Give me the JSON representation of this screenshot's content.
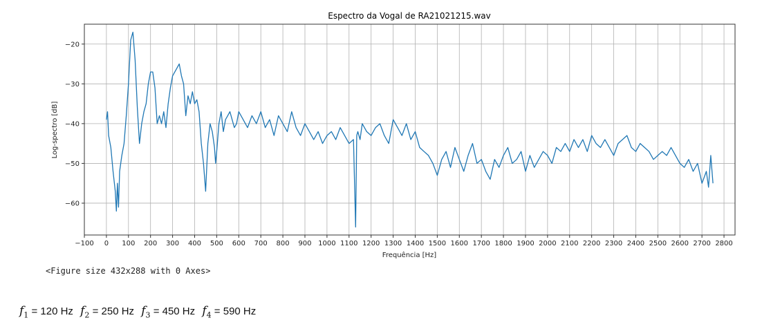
{
  "chart_data": {
    "type": "line",
    "title": "Espectro da Vogal de RA21021215.wav",
    "xlabel": "Frequência [Hz]",
    "ylabel": "Log-spectro [dB]",
    "xlim": [
      -100,
      2850
    ],
    "ylim": [
      -68,
      -15
    ],
    "xticks": [
      -100,
      0,
      100,
      200,
      300,
      400,
      500,
      600,
      700,
      800,
      900,
      1000,
      1100,
      1200,
      1300,
      1400,
      1500,
      1600,
      1700,
      1800,
      1900,
      2000,
      2100,
      2200,
      2300,
      2400,
      2500,
      2600,
      2700,
      2800
    ],
    "xtick_labels": [
      "−100",
      "0",
      "100",
      "200",
      "300",
      "400",
      "500",
      "600",
      "700",
      "800",
      "900",
      "1000",
      "1100",
      "1200",
      "1300",
      "1400",
      "1500",
      "1600",
      "1700",
      "1800",
      "1900",
      "2000",
      "2100",
      "2200",
      "2300",
      "2400",
      "2500",
      "2600",
      "2700",
      "2800"
    ],
    "yticks": [
      -60,
      -50,
      -40,
      -30,
      -20
    ],
    "ytick_labels": [
      "−60",
      "−50",
      "−40",
      "−30",
      "−20"
    ],
    "grid": true,
    "line_color": "#1f77b4",
    "series": [
      {
        "x": [
          0,
          5,
          10,
          20,
          30,
          40,
          45,
          50,
          55,
          60,
          70,
          80,
          90,
          100,
          110,
          120,
          130,
          140,
          150,
          160,
          170,
          180,
          190,
          200,
          210,
          220,
          230,
          240,
          250,
          260,
          270,
          280,
          290,
          300,
          310,
          320,
          330,
          340,
          350,
          360,
          370,
          380,
          390,
          400,
          410,
          420,
          430,
          440,
          450,
          460,
          470,
          480,
          490,
          495,
          500,
          510,
          520,
          530,
          540,
          550,
          560,
          570,
          580,
          590,
          600,
          620,
          640,
          660,
          680,
          700,
          720,
          740,
          760,
          780,
          800,
          820,
          840,
          860,
          880,
          900,
          920,
          940,
          960,
          980,
          1000,
          1020,
          1040,
          1060,
          1080,
          1100,
          1120,
          1130,
          1135,
          1140,
          1150,
          1160,
          1180,
          1200,
          1220,
          1240,
          1260,
          1280,
          1300,
          1320,
          1340,
          1360,
          1380,
          1400,
          1420,
          1440,
          1460,
          1480,
          1500,
          1520,
          1540,
          1560,
          1580,
          1600,
          1620,
          1640,
          1660,
          1680,
          1700,
          1720,
          1740,
          1760,
          1780,
          1800,
          1820,
          1840,
          1860,
          1880,
          1900,
          1920,
          1940,
          1960,
          1980,
          2000,
          2020,
          2040,
          2060,
          2080,
          2100,
          2120,
          2140,
          2160,
          2180,
          2200,
          2220,
          2240,
          2260,
          2280,
          2300,
          2320,
          2340,
          2360,
          2380,
          2400,
          2420,
          2440,
          2460,
          2480,
          2500,
          2520,
          2540,
          2560,
          2580,
          2600,
          2620,
          2640,
          2660,
          2680,
          2700,
          2720,
          2730,
          2740,
          2750
        ],
        "y": [
          -39,
          -37,
          -43,
          -46,
          -52,
          -57,
          -62,
          -55,
          -61,
          -52,
          -48,
          -45,
          -38,
          -30,
          -19,
          -17,
          -24,
          -36,
          -45,
          -40,
          -37,
          -35,
          -30,
          -27,
          -27,
          -31,
          -40,
          -38,
          -40,
          -37,
          -41,
          -35,
          -31,
          -28,
          -27,
          -26,
          -25,
          -28,
          -30,
          -38,
          -33,
          -35,
          -32,
          -35,
          -34,
          -37,
          -45,
          -50,
          -57,
          -45,
          -40,
          -42,
          -46,
          -50,
          -47,
          -40,
          -37,
          -42,
          -39,
          -38,
          -37,
          -39,
          -41,
          -40,
          -37,
          -39,
          -41,
          -38,
          -40,
          -37,
          -41,
          -39,
          -43,
          -38,
          -40,
          -42,
          -37,
          -41,
          -43,
          -40,
          -42,
          -44,
          -42,
          -45,
          -43,
          -42,
          -44,
          -41,
          -43,
          -45,
          -44,
          -66,
          -43,
          -42,
          -44,
          -40,
          -42,
          -43,
          -41,
          -40,
          -43,
          -45,
          -39,
          -41,
          -43,
          -40,
          -44,
          -42,
          -46,
          -47,
          -48,
          -50,
          -53,
          -49,
          -47,
          -51,
          -46,
          -49,
          -52,
          -48,
          -45,
          -50,
          -49,
          -52,
          -54,
          -49,
          -51,
          -48,
          -46,
          -50,
          -49,
          -47,
          -52,
          -48,
          -51,
          -49,
          -47,
          -48,
          -50,
          -46,
          -47,
          -45,
          -47,
          -44,
          -46,
          -44,
          -47,
          -43,
          -45,
          -46,
          -44,
          -46,
          -48,
          -45,
          -44,
          -43,
          -46,
          -47,
          -45,
          -46,
          -47,
          -49,
          -48,
          -47,
          -48,
          -46,
          -48,
          -50,
          -51,
          -49,
          -52,
          -50,
          -55,
          -52,
          -56,
          -48,
          -55
        ]
      }
    ]
  },
  "output_text": "<Figure size 432x288 with 0 Axes>",
  "formants": [
    {
      "symbol": "f",
      "index": "1",
      "text": "= 120 Hz"
    },
    {
      "symbol": "f",
      "index": "2",
      "text": "= 250 Hz"
    },
    {
      "symbol": "f",
      "index": "3",
      "text": "= 450 Hz"
    },
    {
      "symbol": "f",
      "index": "4",
      "text": "= 590 Hz"
    }
  ]
}
